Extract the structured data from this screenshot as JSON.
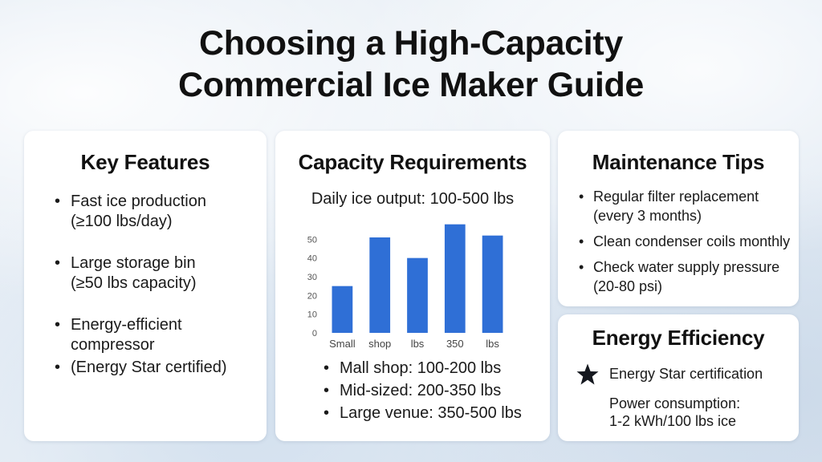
{
  "title_line1": "Choosing a High-Capacity",
  "title_line2": "Commercial Ice Maker Guide",
  "features": {
    "heading": "Key Features",
    "items": [
      {
        "line1": "Fast ice production",
        "line2": "(≥100 lbs/day)"
      },
      {
        "line1": "Large storage bin",
        "line2": "(≥50 lbs capacity)"
      },
      {
        "line1": "Energy-efficient",
        "line2": "compressor"
      },
      {
        "line1": "(Energy Star certified)"
      }
    ]
  },
  "capacity": {
    "heading": "Capacity Requirements",
    "subtitle": "Daily ice output: 100-500 lbs",
    "bullets": [
      "Mall shop: 100-200 lbs",
      "Mid-sized: 200-350 lbs",
      "Large venue: 350-500 lbs"
    ]
  },
  "maintenance": {
    "heading": "Maintenance Tips",
    "items": [
      {
        "line1": "Regular filter replacement",
        "line2": "(every 3 months)"
      },
      {
        "line1": "Clean condenser coils monthly"
      },
      {
        "line1": "Check water supply pressure",
        "line2": "(20-80 psi)"
      }
    ]
  },
  "energy": {
    "heading": "Energy Efficiency",
    "star_icon": "star-icon",
    "cert": "Energy Star certification",
    "power_line1": "Power consumption:",
    "power_line2": "1-2 kWh/100 lbs ice"
  },
  "chart_data": {
    "type": "bar",
    "categories": [
      "Small",
      "shop",
      "lbs",
      "350",
      "lbs"
    ],
    "values": [
      25,
      51,
      40,
      58,
      52
    ],
    "ylim": [
      0,
      60
    ],
    "yticks": [
      0,
      10,
      20,
      30,
      40,
      50
    ],
    "ytick_labels": [
      "0",
      "10",
      "20",
      "30",
      "40",
      "50"
    ],
    "grid": false,
    "bar_color": "#2f6fd6"
  }
}
